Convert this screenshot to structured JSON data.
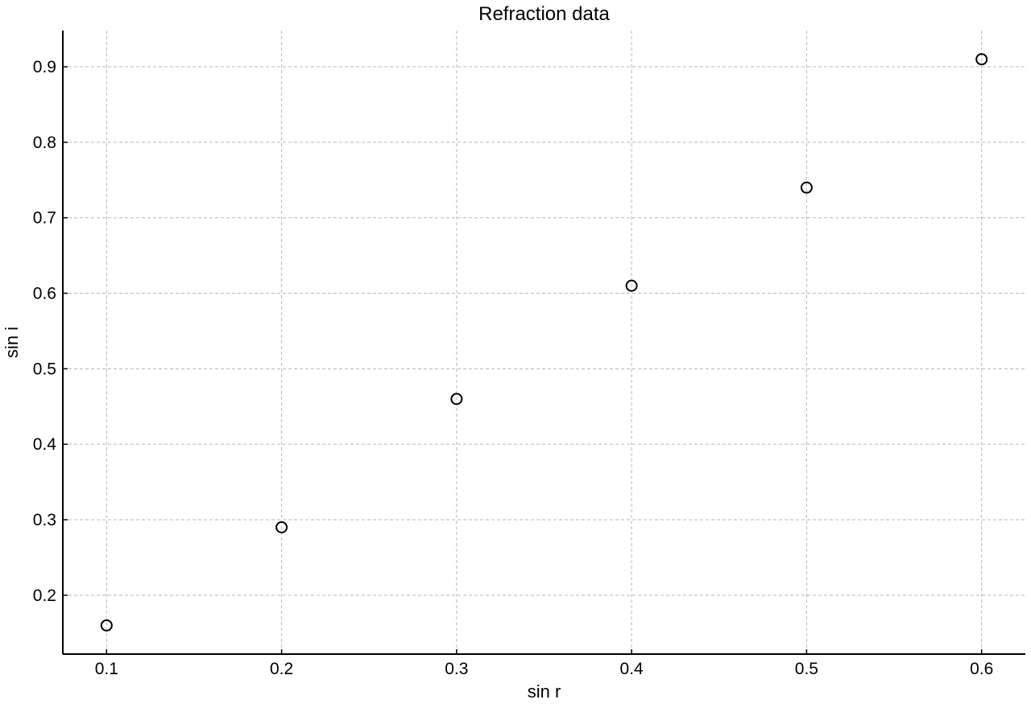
{
  "chart_data": {
    "type": "scatter",
    "title": "Refraction data",
    "xlabel": "sin r",
    "ylabel": "sin i",
    "xlim": [
      0.075,
      0.625
    ],
    "ylim": [
      0.122,
      0.948
    ],
    "xticks": [
      0.1,
      0.2,
      0.3,
      0.4,
      0.5,
      0.6
    ],
    "xtick_labels": [
      "0.1",
      "0.2",
      "0.3",
      "0.4",
      "0.5",
      "0.6"
    ],
    "yticks": [
      0.2,
      0.3,
      0.4,
      0.5,
      0.6,
      0.7,
      0.8,
      0.9
    ],
    "ytick_labels": [
      "0.2",
      "0.3",
      "0.4",
      "0.5",
      "0.6",
      "0.7",
      "0.8",
      "0.9"
    ],
    "grid": true,
    "marker": "open-circle",
    "colors": {
      "marker": "#000000",
      "grid": "#b8b8b8",
      "axis": "#000000"
    },
    "series": [
      {
        "x": [
          0.1,
          0.2,
          0.3,
          0.4,
          0.5,
          0.6
        ],
        "y": [
          0.16,
          0.29,
          0.46,
          0.61,
          0.74,
          0.91
        ]
      }
    ]
  }
}
